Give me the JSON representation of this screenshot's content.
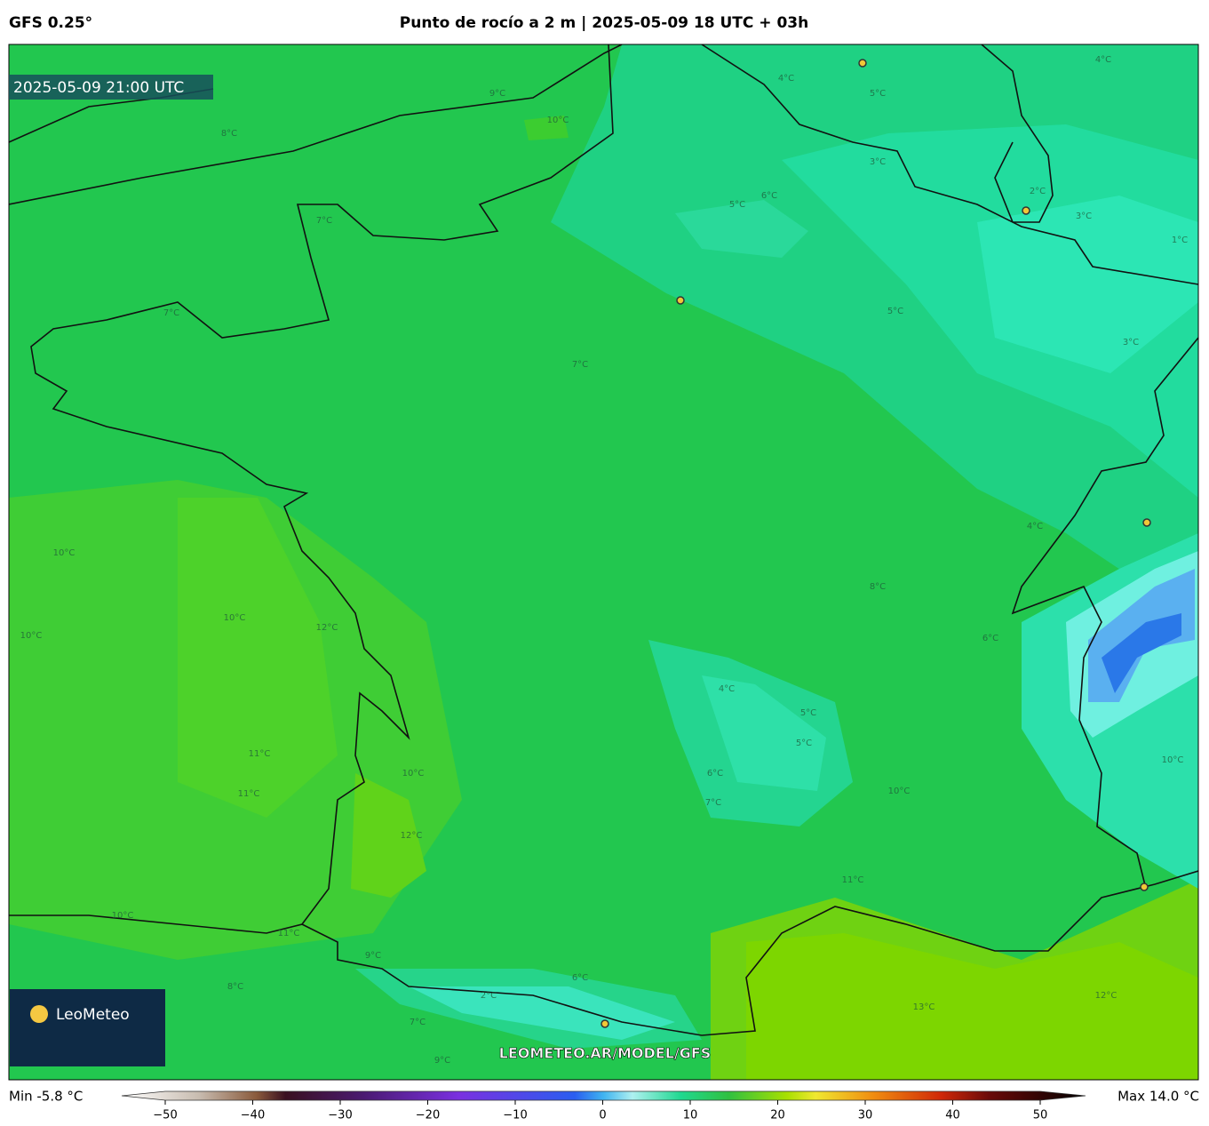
{
  "header": {
    "model": "GFS 0.25°",
    "title": "Punto de rocío a 2 m | 2025-05-09 18 UTC + 03h"
  },
  "map": {
    "valid_time": "2025-05-09 21:00 UTC",
    "watermark": "LEOMETEO.AR/MODEL/GFS",
    "logo": "LeoMeteo",
    "contour_labels": [
      "10°C",
      "9°C",
      "8°C",
      "7°C",
      "7°C",
      "7°C",
      "5°C",
      "6°C",
      "4°C",
      "5°C",
      "3°C",
      "2°C",
      "3°C",
      "1°C",
      "4°C",
      "5°C",
      "3°C",
      "4°C",
      "8°C",
      "6°C",
      "10°C",
      "12°C",
      "11°C",
      "11°C",
      "10°C",
      "10°C",
      "5°C",
      "5°C",
      "4°C",
      "6°C",
      "7°C",
      "10°C",
      "12°C",
      "10°C",
      "11°C",
      "13°C",
      "12°C",
      "10°C",
      "2°C",
      "6°C",
      "7°C",
      "8°C",
      "9°C",
      "10°C",
      "9°C",
      "11°C"
    ]
  },
  "colorbar": {
    "min_label": "Min -5.8 °C",
    "max_label": "Max 14.0 °C",
    "ticks": [
      {
        "value": -50,
        "label": "−50"
      },
      {
        "value": -40,
        "label": "−40"
      },
      {
        "value": -30,
        "label": "−30"
      },
      {
        "value": -20,
        "label": "−20"
      },
      {
        "value": -10,
        "label": "−10"
      },
      0,
      10,
      20,
      30,
      40,
      50
    ]
  }
}
